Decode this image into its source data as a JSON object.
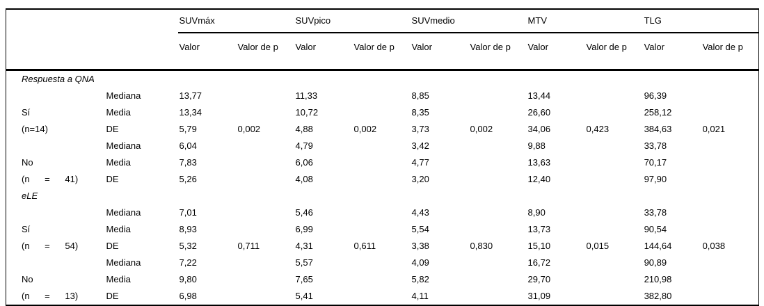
{
  "colors": {
    "background": "#ffffff",
    "border": "#000000",
    "text": "#000000"
  },
  "table": {
    "groups": [
      {
        "label": "SUVmáx"
      },
      {
        "label": "SUVpico"
      },
      {
        "label": "SUVmedio"
      },
      {
        "label": "MTV"
      },
      {
        "label": "TLG"
      }
    ],
    "subheader": {
      "valor": "Valor",
      "valor_p": "Valor de p"
    },
    "rows": [
      {
        "type": "section",
        "label": "Respuesta a QNA"
      },
      {
        "type": "data",
        "cells": [
          "",
          "Mediana",
          "13,77",
          "",
          "11,33",
          "",
          "8,85",
          "",
          "13,44",
          "",
          "96,39",
          ""
        ]
      },
      {
        "type": "data",
        "cells": [
          "Sí",
          "Media",
          "13,34",
          "",
          "10,72",
          "",
          "8,35",
          "",
          "26,60",
          "",
          "258,12",
          ""
        ]
      },
      {
        "type": "data",
        "cells": [
          "(n=14)",
          "DE",
          "5,79",
          "0,002",
          "4,88",
          "0,002",
          "3,73",
          "0,002",
          "34,06",
          "0,423",
          "384,63",
          "0,021"
        ]
      },
      {
        "type": "data",
        "cells": [
          "",
          "Mediana",
          "6,04",
          "",
          "4,79",
          "",
          "3,42",
          "",
          "9,88",
          "",
          "33,78",
          ""
        ]
      },
      {
        "type": "data",
        "cells": [
          "No",
          "Media",
          "7,83",
          "",
          "6,06",
          "",
          "4,77",
          "",
          "13,63",
          "",
          "70,17",
          ""
        ]
      },
      {
        "type": "data",
        "cells": [
          "(n = 41)",
          "DE",
          "5,26",
          "",
          "4,08",
          "",
          "3,20",
          "",
          "12,40",
          "",
          "97,90",
          ""
        ]
      },
      {
        "type": "section",
        "label": "eLE"
      },
      {
        "type": "data",
        "cells": [
          "",
          "Mediana",
          "7,01",
          "",
          "5,46",
          "",
          "4,43",
          "",
          "8,90",
          "",
          "33,78",
          ""
        ]
      },
      {
        "type": "data",
        "cells": [
          "Sí",
          "Media",
          "8,93",
          "",
          "6,99",
          "",
          "5,54",
          "",
          "13,73",
          "",
          "90,54",
          ""
        ]
      },
      {
        "type": "data",
        "cells": [
          "(n = 54)",
          "DE",
          "5,32",
          "0,711",
          "4,31",
          "0,611",
          "3,38",
          "0,830",
          "15,10",
          "0,015",
          "144,64",
          "0,038"
        ]
      },
      {
        "type": "data",
        "cells": [
          "",
          "Mediana",
          "7,22",
          "",
          "5,57",
          "",
          "4,09",
          "",
          "16,72",
          "",
          "90,89",
          ""
        ]
      },
      {
        "type": "data",
        "cells": [
          "No",
          "Media",
          "9,80",
          "",
          "7,65",
          "",
          "5,82",
          "",
          "29,70",
          "",
          "210,98",
          ""
        ]
      },
      {
        "type": "data",
        "cells": [
          "(n = 13)",
          "DE",
          "6,98",
          "",
          "5,41",
          "",
          "4,11",
          "",
          "31,09",
          "",
          "382,80",
          ""
        ]
      }
    ]
  }
}
